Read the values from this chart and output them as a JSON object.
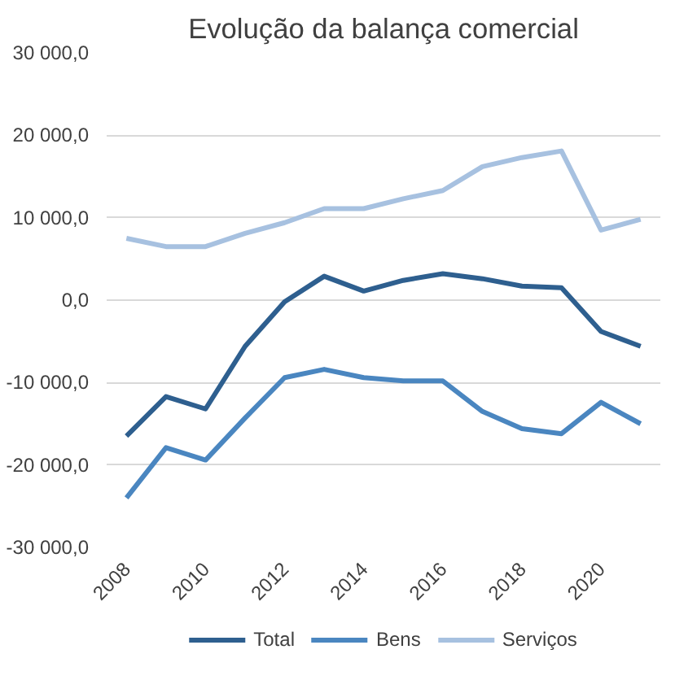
{
  "chart_data": {
    "type": "line",
    "title": "Evolução da balança comercial",
    "categories": [
      "2008",
      null,
      "2010",
      null,
      "2012",
      null,
      "2014",
      null,
      "2016",
      null,
      "2018",
      null,
      "2020",
      null
    ],
    "series": [
      {
        "name": "Total",
        "color": "#2e5f8f",
        "values": [
          -16500,
          -11700,
          -13200,
          -5600,
          -200,
          2900,
          1100,
          2400,
          3200,
          2600,
          1700,
          1500,
          -3800,
          -5600
        ]
      },
      {
        "name": "Bens",
        "color": "#4a86c0",
        "values": [
          -24000,
          -17900,
          -19400,
          -14300,
          -9400,
          -8400,
          -9400,
          -9800,
          -9800,
          -13500,
          -15600,
          -16200,
          -12400,
          -15000
        ]
      },
      {
        "name": "Serviços",
        "color": "#a7c1e0",
        "values": [
          7500,
          6500,
          6500,
          8100,
          9400,
          11100,
          11100,
          12300,
          13300,
          16200,
          17300,
          18100,
          8500,
          9800
        ]
      }
    ],
    "ylim": [
      -30000,
      30000
    ],
    "yticks": [
      {
        "value": -30000,
        "label": "-30 000,0"
      },
      {
        "value": -20000,
        "label": "-20 000,0"
      },
      {
        "value": -10000,
        "label": "-10 000,0"
      },
      {
        "value": 0,
        "label": "0,0"
      },
      {
        "value": 10000,
        "label": "10 000,0"
      },
      {
        "value": 20000,
        "label": "20 000,0"
      },
      {
        "value": 30000,
        "label": "30 000,0"
      }
    ],
    "grid": "y",
    "legend": "bottom",
    "marker": "none",
    "line_style": "solid"
  }
}
